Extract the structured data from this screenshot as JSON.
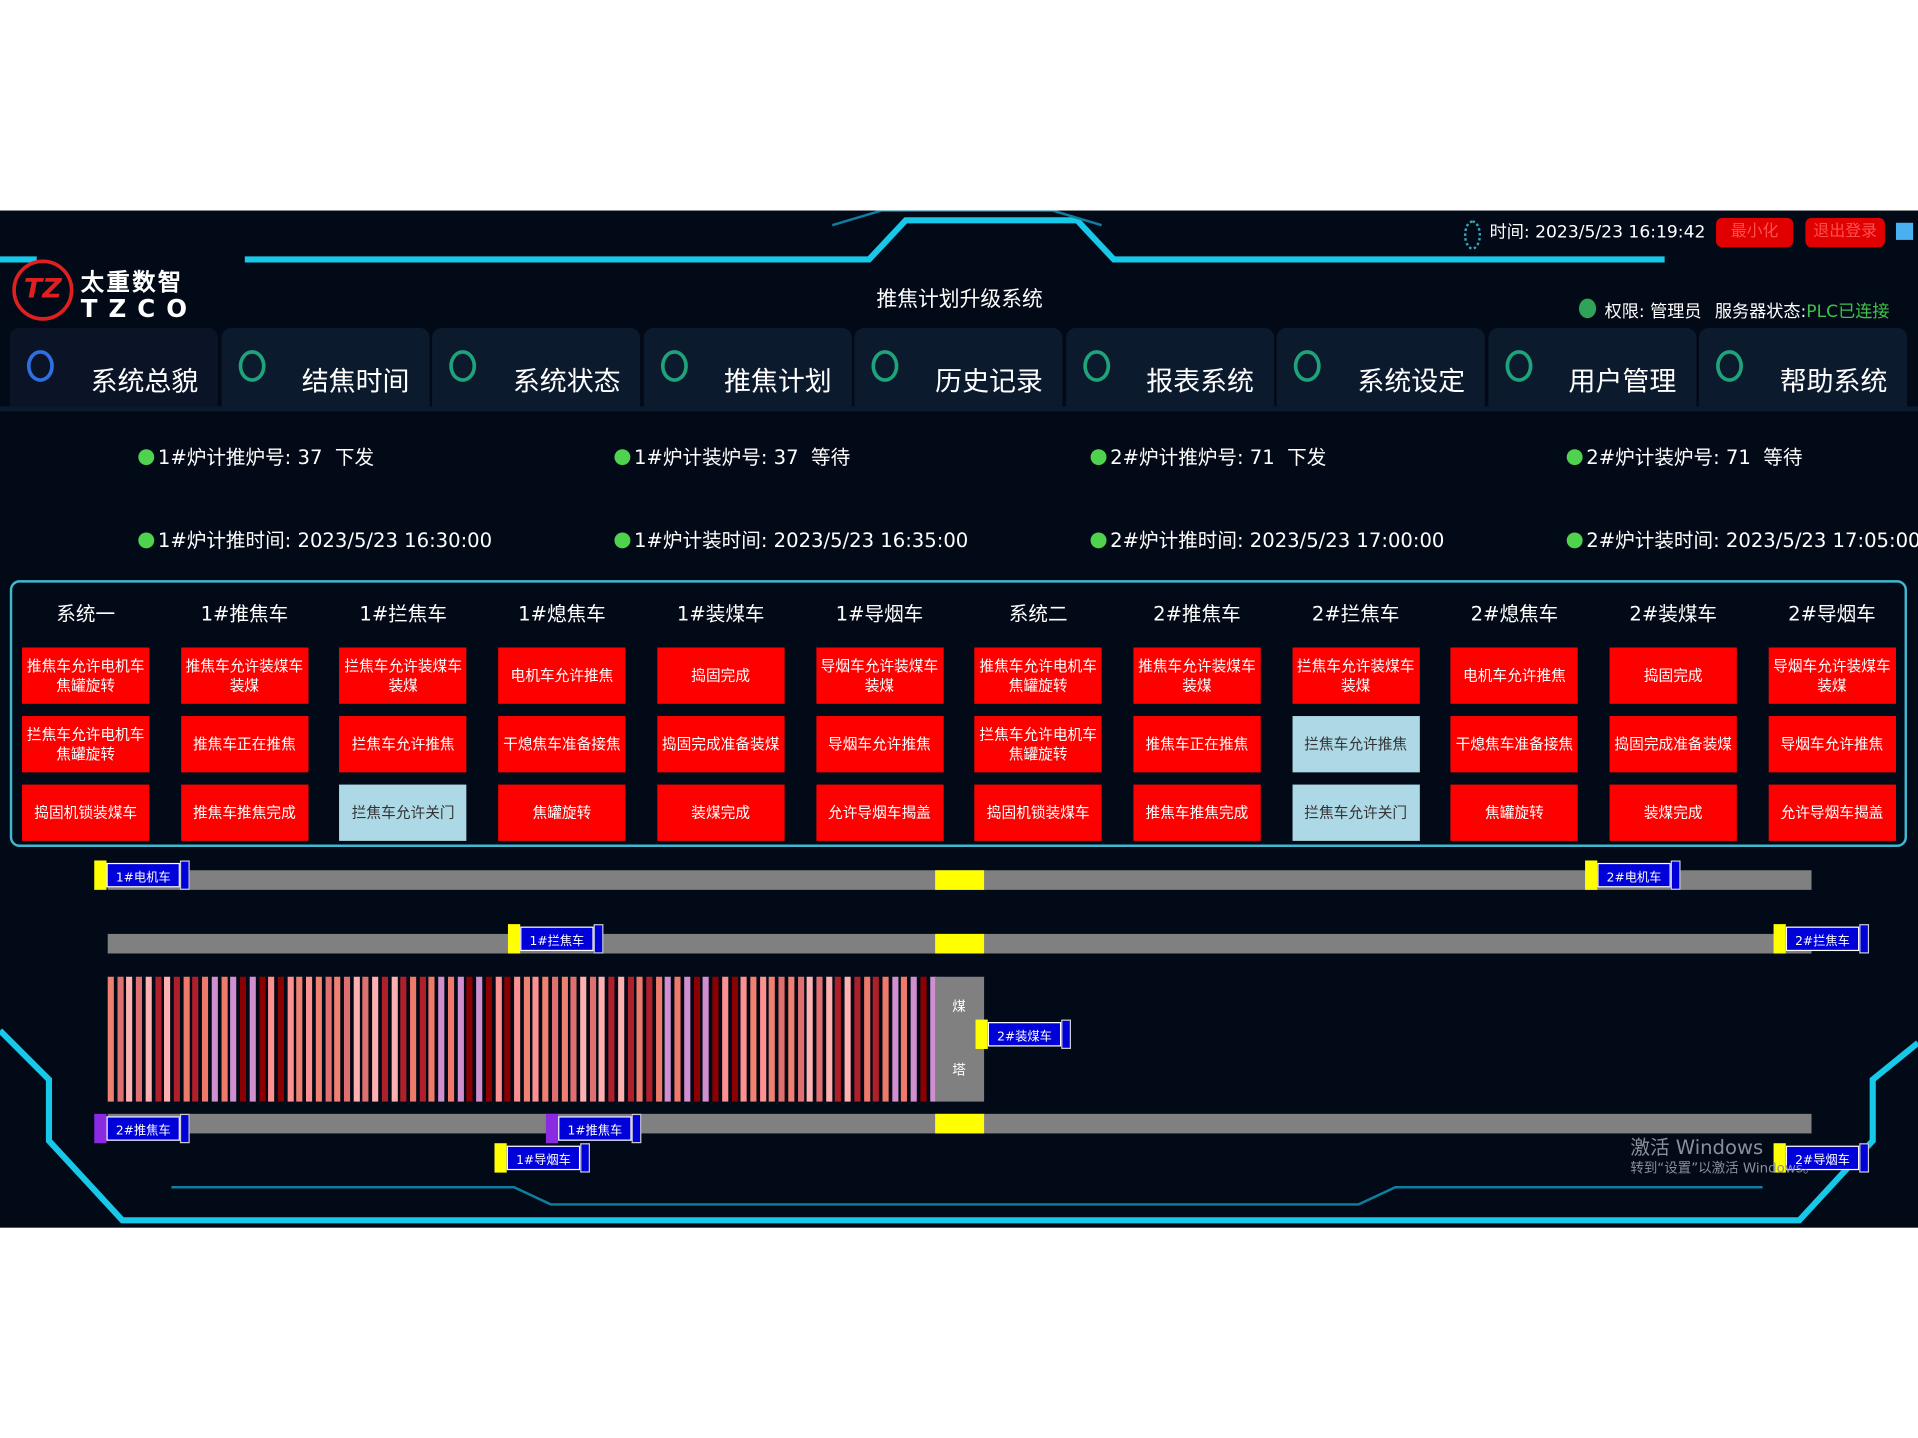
{
  "header": {
    "logo_mark": "TZ",
    "logo_cn": "太重数智",
    "logo_en": "TZCO",
    "title": "推焦计划升级系统",
    "time_label": "时间:",
    "time": "2023/5/23 16:19:42",
    "minimize": "最小化",
    "logout": "退出登录",
    "permission": "权限: 管理员",
    "server_label": "服务器状态:",
    "server_status": "PLC已连接"
  },
  "tabs": [
    "系统总貌",
    "结焦时间",
    "系统状态",
    "推焦计划",
    "历史记录",
    "报表系统",
    "系统设定",
    "用户管理",
    "帮助系统"
  ],
  "plan": [
    "1#炉计推炉号: 37  下发",
    "1#炉计装炉号: 37  等待",
    "2#炉计推炉号: 71  下发",
    "2#炉计装炉号: 71  等待",
    "1#炉计推时间: 2023/5/23 16:30:00",
    "1#炉计装时间: 2023/5/23 16:35:00",
    "2#炉计推时间: 2023/5/23 17:00:00",
    "2#炉计装时间: 2023/5/23 17:05:00"
  ],
  "status": {
    "columns": [
      {
        "name": "系统一",
        "cells": [
          {
            "text": "推焦车允许电机车焦罐旋转",
            "color": "#ff0000"
          },
          {
            "text": "拦焦车允许电机车焦罐旋转",
            "color": "#ff0000"
          },
          {
            "text": "捣固机锁装煤车",
            "color": "#ff0000"
          }
        ]
      },
      {
        "name": "1#推焦车",
        "cells": [
          {
            "text": "推焦车允许装煤车装煤",
            "color": "#ff0000"
          },
          {
            "text": "推焦车正在推焦",
            "color": "#ff0000"
          },
          {
            "text": "推焦车推焦完成",
            "color": "#ff0000"
          }
        ]
      },
      {
        "name": "1#拦焦车",
        "cells": [
          {
            "text": "拦焦车允许装煤车装煤",
            "color": "#ff0000"
          },
          {
            "text": "拦焦车允许推焦",
            "color": "#ff0000"
          },
          {
            "text": "拦焦车允许关门",
            "color": "#add8e6"
          }
        ]
      },
      {
        "name": "1#熄焦车",
        "cells": [
          {
            "text": "电机车允许推焦",
            "color": "#ff0000"
          },
          {
            "text": "干熄焦车准备接焦",
            "color": "#ff0000"
          },
          {
            "text": "焦罐旋转",
            "color": "#ff0000"
          }
        ]
      },
      {
        "name": "1#装煤车",
        "cells": [
          {
            "text": "捣固完成",
            "color": "#ff0000"
          },
          {
            "text": "捣固完成准备装煤",
            "color": "#ff0000"
          },
          {
            "text": "装煤完成",
            "color": "#ff0000"
          }
        ]
      },
      {
        "name": "1#导烟车",
        "cells": [
          {
            "text": "导烟车允许装煤车装煤",
            "color": "#ff0000"
          },
          {
            "text": "导烟车允许推焦",
            "color": "#ff0000"
          },
          {
            "text": "允许导烟车揭盖",
            "color": "#ff0000"
          }
        ]
      },
      {
        "name": "系统二",
        "cells": [
          {
            "text": "推焦车允许电机车焦罐旋转",
            "color": "#ff0000"
          },
          {
            "text": "拦焦车允许电机车焦罐旋转",
            "color": "#ff0000"
          },
          {
            "text": "捣固机锁装煤车",
            "color": "#ff0000"
          }
        ]
      },
      {
        "name": "2#推焦车",
        "cells": [
          {
            "text": "推焦车允许装煤车装煤",
            "color": "#ff0000"
          },
          {
            "text": "推焦车正在推焦",
            "color": "#ff0000"
          },
          {
            "text": "推焦车推焦完成",
            "color": "#ff0000"
          }
        ]
      },
      {
        "name": "2#拦焦车",
        "cells": [
          {
            "text": "拦焦车允许装煤车装煤",
            "color": "#ff0000"
          },
          {
            "text": "拦焦车允许推焦",
            "color": "#add8e6"
          },
          {
            "text": "拦焦车允许关门",
            "color": "#add8e6"
          }
        ]
      },
      {
        "name": "2#熄焦车",
        "cells": [
          {
            "text": "电机车允许推焦",
            "color": "#ff0000"
          },
          {
            "text": "干熄焦车准备接焦",
            "color": "#ff0000"
          },
          {
            "text": "焦罐旋转",
            "color": "#ff0000"
          }
        ]
      },
      {
        "name": "2#装煤车",
        "cells": [
          {
            "text": "捣固完成",
            "color": "#ff0000"
          },
          {
            "text": "捣固完成准备装煤",
            "color": "#ff0000"
          },
          {
            "text": "装煤完成",
            "color": "#ff0000"
          }
        ]
      },
      {
        "name": "2#导烟车",
        "cells": [
          {
            "text": "导烟车允许装煤车装煤",
            "color": "#ff0000"
          },
          {
            "text": "导烟车允许推焦",
            "color": "#ff0000"
          },
          {
            "text": "允许导烟车揭盖",
            "color": "#ff0000"
          }
        ]
      }
    ]
  },
  "track": {
    "cars": [
      "1#电机车",
      "2#电机车",
      "1#拦焦车",
      "2#拦焦车",
      "2#装煤车",
      "2#推焦车",
      "1#推焦车",
      "1#导烟车",
      "2#导烟车"
    ],
    "tower": [
      "煤",
      "塔"
    ]
  },
  "watermark": {
    "title": "激活 Windows",
    "hint": "转到“设置”以激活 Windows。"
  }
}
